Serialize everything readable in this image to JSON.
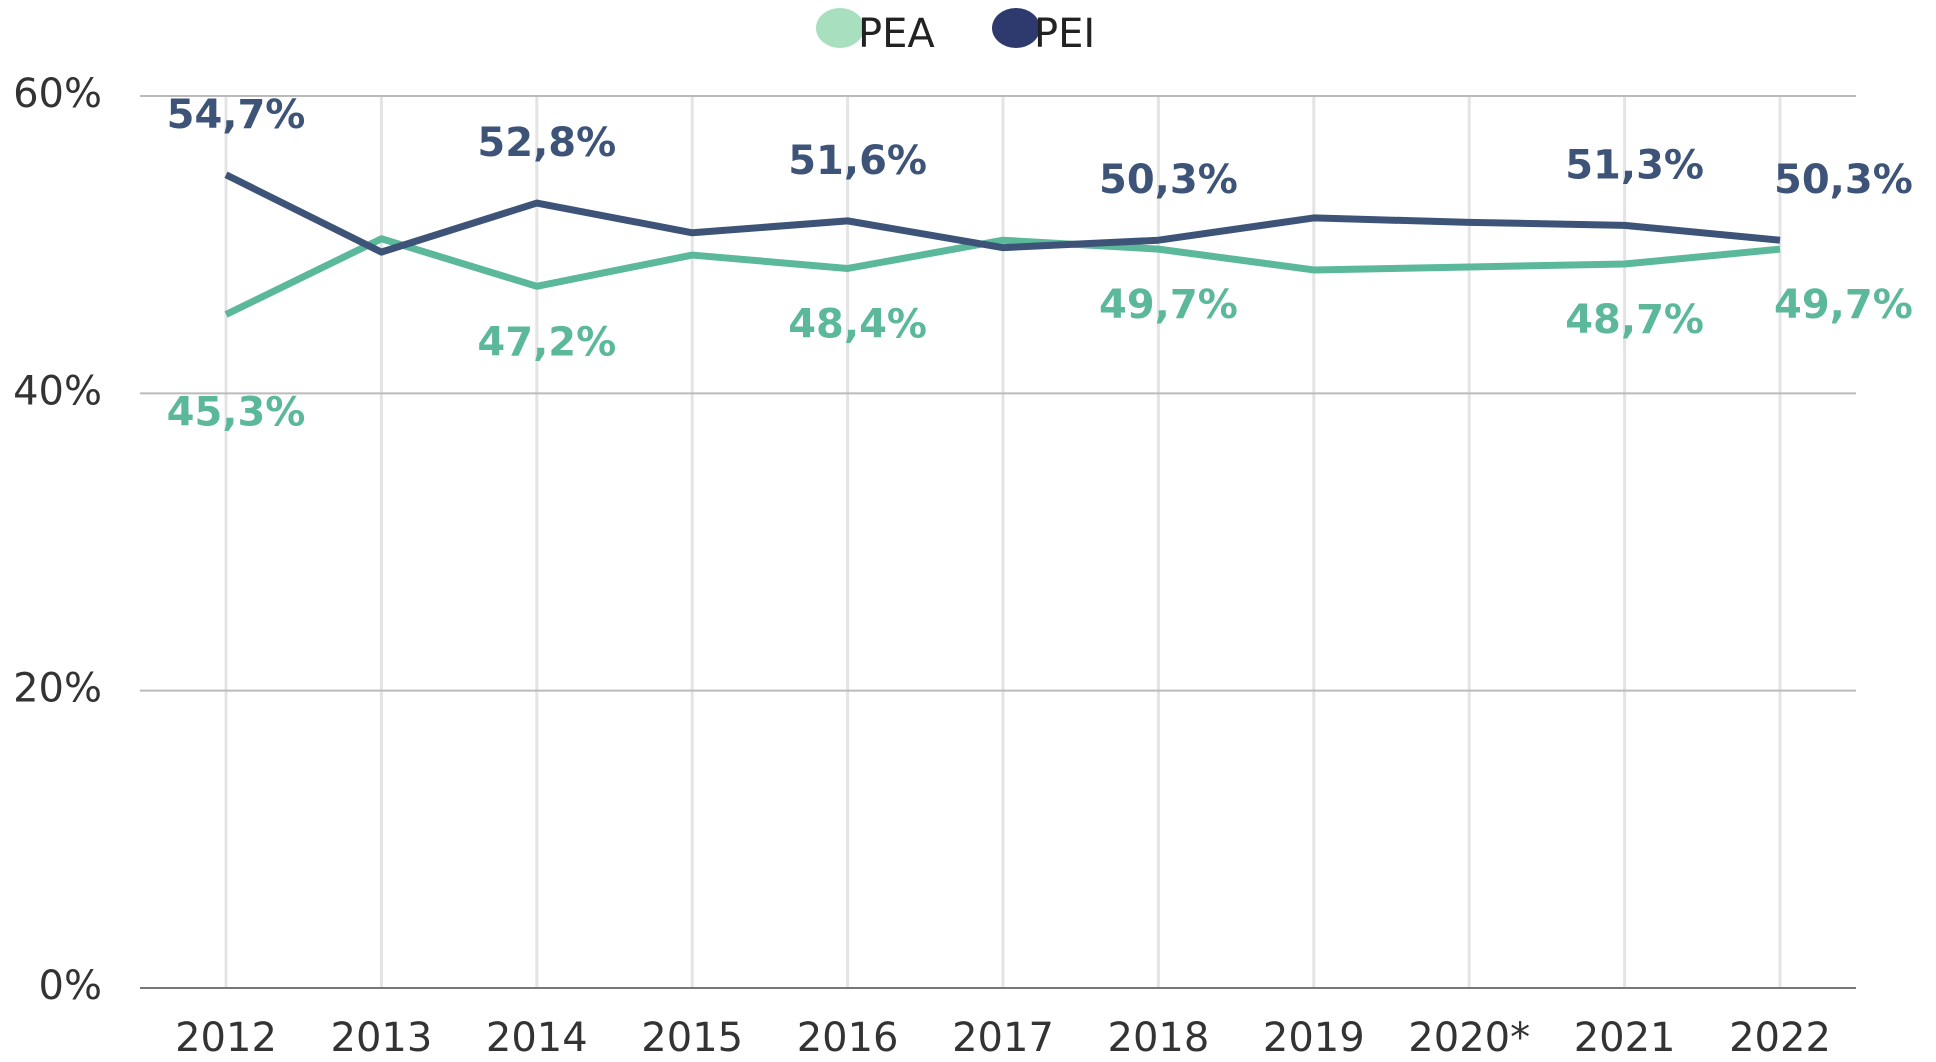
{
  "chart_data": {
    "type": "line",
    "categories": [
      "2012",
      "2013",
      "2014",
      "2015",
      "2016",
      "2017",
      "2018",
      "2019",
      "2020*",
      "2021",
      "2022"
    ],
    "series": [
      {
        "name": "PEA",
        "color": "#5bb89a",
        "values": [
          45.3,
          50.4,
          47.2,
          49.3,
          48.4,
          50.3,
          49.7,
          48.3,
          48.5,
          48.7,
          49.7
        ],
        "value_labels": [
          "45,3%",
          null,
          "47,2%",
          null,
          "48,4%",
          null,
          "49,7%",
          null,
          null,
          "48,7%",
          "49,7%"
        ]
      },
      {
        "name": "PEI",
        "color": "#3d5478",
        "values": [
          54.7,
          49.5,
          52.8,
          50.8,
          51.6,
          49.8,
          50.3,
          51.8,
          51.5,
          51.3,
          50.3
        ],
        "value_labels": [
          "54,7%",
          null,
          "52,8%",
          null,
          "51,6%",
          null,
          "50,3%",
          null,
          null,
          "51,3%",
          "50,3%"
        ]
      }
    ],
    "ylim": [
      0,
      60
    ],
    "yticks": [
      {
        "value": 0,
        "label": "0%"
      },
      {
        "value": 20,
        "label": "20%"
      },
      {
        "value": 40,
        "label": "40%"
      },
      {
        "value": 60,
        "label": "60%"
      }
    ],
    "grid": true,
    "legend": "top"
  }
}
